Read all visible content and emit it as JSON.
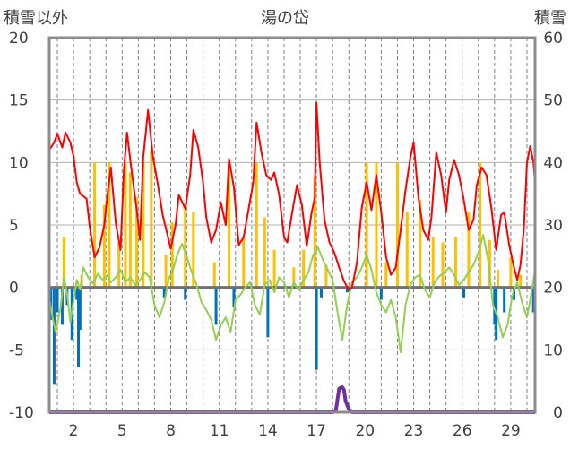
{
  "chart_data": {
    "type": "line",
    "title": "湯の岱",
    "left_axis_title": "積雪以外",
    "right_axis_title": "積雪",
    "ylim_left": [
      -10,
      20
    ],
    "ylim_right": [
      0,
      60
    ],
    "y_ticks_left": [
      "20",
      "15",
      "10",
      "5",
      "0",
      "-5",
      "-10"
    ],
    "y_ticks_right": [
      "60",
      "50",
      "40",
      "30",
      "20",
      "10",
      "0"
    ],
    "x_ticks": [
      "2",
      "5",
      "8",
      "11",
      "14",
      "17",
      "20",
      "23",
      "26",
      "29"
    ],
    "x_tick_days": [
      2,
      5,
      8,
      11,
      14,
      17,
      20,
      23,
      26,
      29
    ],
    "xlim": [
      0.5,
      30.5
    ],
    "grid": true,
    "colors": {
      "red_line": "#ff0000",
      "green_line": "#92d050",
      "orange_bars": "#ffc000",
      "blue_bars": "#0070c0",
      "purple_line": "#7030a0",
      "zero_line": "#707070",
      "frame": "#8c8c8c"
    },
    "series": [
      {
        "axis": "left",
        "style": "line",
        "color": "#ff0000",
        "points": [
          [
            0.5,
            11
          ],
          [
            0.8,
            11.6
          ],
          [
            1.0,
            12.3
          ],
          [
            1.3,
            11.2
          ],
          [
            1.5,
            12.4
          ],
          [
            1.8,
            11.6
          ],
          [
            2.0,
            10.5
          ],
          [
            2.2,
            8.4
          ],
          [
            2.4,
            7.5
          ],
          [
            2.8,
            7.1
          ],
          [
            3.0,
            4.8
          ],
          [
            3.3,
            2.4
          ],
          [
            3.6,
            3.2
          ],
          [
            3.9,
            5.0
          ],
          [
            4.1,
            7.5
          ],
          [
            4.3,
            9.6
          ],
          [
            4.6,
            5.2
          ],
          [
            4.9,
            3.0
          ],
          [
            5.1,
            9.2
          ],
          [
            5.3,
            12.4
          ],
          [
            5.6,
            9.2
          ],
          [
            5.9,
            6.2
          ],
          [
            6.1,
            3.8
          ],
          [
            6.3,
            10.4
          ],
          [
            6.6,
            14.2
          ],
          [
            6.9,
            10.5
          ],
          [
            7.2,
            8.3
          ],
          [
            7.5,
            5.8
          ],
          [
            7.8,
            4.2
          ],
          [
            8.0,
            3.1
          ],
          [
            8.3,
            5.0
          ],
          [
            8.5,
            7.4
          ],
          [
            8.9,
            6.3
          ],
          [
            9.2,
            9.0
          ],
          [
            9.4,
            12.6
          ],
          [
            9.7,
            11.2
          ],
          [
            10.0,
            8.4
          ],
          [
            10.2,
            5.6
          ],
          [
            10.5,
            3.6
          ],
          [
            10.8,
            4.6
          ],
          [
            11.1,
            6.8
          ],
          [
            11.4,
            5.0
          ],
          [
            11.6,
            10.3
          ],
          [
            11.9,
            8.0
          ],
          [
            12.2,
            3.4
          ],
          [
            12.5,
            4.0
          ],
          [
            12.8,
            6.2
          ],
          [
            13.1,
            8.4
          ],
          [
            13.3,
            13.2
          ],
          [
            13.6,
            10.8
          ],
          [
            13.9,
            9.0
          ],
          [
            14.2,
            8.6
          ],
          [
            14.4,
            9.2
          ],
          [
            14.7,
            7.4
          ],
          [
            15.0,
            4.0
          ],
          [
            15.2,
            3.6
          ],
          [
            15.5,
            6.0
          ],
          [
            15.8,
            8.2
          ],
          [
            16.1,
            6.6
          ],
          [
            16.4,
            3.3
          ],
          [
            16.7,
            6.0
          ],
          [
            16.9,
            7.2
          ],
          [
            17.0,
            14.8
          ],
          [
            17.2,
            10.0
          ],
          [
            17.5,
            5.4
          ],
          [
            17.8,
            3.6
          ],
          [
            18.1,
            2.8
          ],
          [
            18.4,
            1.6
          ],
          [
            18.7,
            0.5
          ],
          [
            19.0,
            -0.2
          ],
          [
            19.2,
            0.0
          ],
          [
            19.5,
            2.0
          ],
          [
            19.8,
            6.4
          ],
          [
            20.1,
            8.4
          ],
          [
            20.4,
            6.2
          ],
          [
            20.7,
            9.0
          ],
          [
            21.0,
            6.0
          ],
          [
            21.3,
            2.4
          ],
          [
            21.6,
            1.0
          ],
          [
            21.9,
            1.6
          ],
          [
            22.2,
            4.6
          ],
          [
            22.5,
            7.8
          ],
          [
            22.8,
            10.4
          ],
          [
            23.0,
            11.6
          ],
          [
            23.3,
            7.2
          ],
          [
            23.6,
            4.6
          ],
          [
            23.9,
            3.8
          ],
          [
            24.1,
            5.6
          ],
          [
            24.4,
            10.8
          ],
          [
            24.7,
            9.0
          ],
          [
            25.0,
            6.0
          ],
          [
            25.2,
            8.6
          ],
          [
            25.5,
            10.2
          ],
          [
            25.8,
            9.0
          ],
          [
            26.1,
            7.0
          ],
          [
            26.4,
            4.6
          ],
          [
            26.7,
            5.4
          ],
          [
            26.9,
            8.2
          ],
          [
            27.2,
            9.6
          ],
          [
            27.5,
            9.0
          ],
          [
            27.8,
            6.4
          ],
          [
            28.1,
            3.0
          ],
          [
            28.4,
            5.8
          ],
          [
            28.6,
            6.0
          ],
          [
            28.9,
            3.4
          ],
          [
            29.2,
            1.6
          ],
          [
            29.4,
            0.6
          ],
          [
            29.6,
            1.8
          ],
          [
            29.8,
            4.6
          ],
          [
            30.0,
            10.0
          ],
          [
            30.2,
            11.3
          ],
          [
            30.4,
            10.0
          ],
          [
            30.5,
            8.4
          ]
        ]
      },
      {
        "axis": "left",
        "style": "line",
        "color": "#92d050",
        "points": [
          [
            0.5,
            -0.8
          ],
          [
            0.7,
            -2.4
          ],
          [
            0.9,
            -3.6
          ],
          [
            1.2,
            -1.6
          ],
          [
            1.4,
            0.8
          ],
          [
            1.6,
            -0.5
          ],
          [
            1.8,
            -2.8
          ],
          [
            2.0,
            -1.0
          ],
          [
            2.2,
            0.6
          ],
          [
            2.4,
            -0.2
          ],
          [
            2.6,
            1.6
          ],
          [
            2.9,
            0.8
          ],
          [
            3.2,
            0.3
          ],
          [
            3.5,
            1.1
          ],
          [
            3.8,
            0.6
          ],
          [
            4.1,
            1.0
          ],
          [
            4.3,
            0.4
          ],
          [
            4.6,
            0.8
          ],
          [
            4.9,
            1.4
          ],
          [
            5.2,
            0.4
          ],
          [
            5.5,
            0.8
          ],
          [
            5.8,
            0.2
          ],
          [
            6.1,
            0.6
          ],
          [
            6.4,
            1.2
          ],
          [
            6.7,
            0.8
          ],
          [
            7.0,
            -1.4
          ],
          [
            7.3,
            -2.4
          ],
          [
            7.6,
            -1.2
          ],
          [
            7.9,
            0.8
          ],
          [
            8.1,
            1.2
          ],
          [
            8.4,
            2.6
          ],
          [
            8.7,
            3.5
          ],
          [
            9.0,
            2.4
          ],
          [
            9.3,
            1.2
          ],
          [
            9.6,
            0.2
          ],
          [
            9.9,
            -1.2
          ],
          [
            10.2,
            -1.8
          ],
          [
            10.5,
            -2.6
          ],
          [
            10.8,
            -4.2
          ],
          [
            11.1,
            -3.0
          ],
          [
            11.4,
            -2.4
          ],
          [
            11.7,
            -3.6
          ],
          [
            12.0,
            -1.0
          ],
          [
            12.3,
            -0.6
          ],
          [
            12.6,
            0.0
          ],
          [
            12.9,
            0.4
          ],
          [
            13.2,
            -1.4
          ],
          [
            13.5,
            -2.2
          ],
          [
            13.8,
            0.2
          ],
          [
            14.1,
            0.6
          ],
          [
            14.4,
            -0.4
          ],
          [
            14.7,
            0.8
          ],
          [
            15.0,
            0.4
          ],
          [
            15.3,
            -0.8
          ],
          [
            15.6,
            0.4
          ],
          [
            15.9,
            -0.2
          ],
          [
            16.2,
            0.6
          ],
          [
            16.5,
            1.2
          ],
          [
            16.8,
            2.6
          ],
          [
            17.1,
            3.2
          ],
          [
            17.4,
            2.2
          ],
          [
            17.7,
            1.4
          ],
          [
            18.0,
            0.6
          ],
          [
            18.3,
            -2.0
          ],
          [
            18.6,
            -4.2
          ],
          [
            18.9,
            -1.4
          ],
          [
            19.2,
            0.4
          ],
          [
            19.5,
            0.8
          ],
          [
            19.8,
            1.6
          ],
          [
            20.1,
            2.6
          ],
          [
            20.4,
            1.4
          ],
          [
            20.7,
            -0.4
          ],
          [
            21.0,
            -1.4
          ],
          [
            21.3,
            -2.0
          ],
          [
            21.6,
            -1.0
          ],
          [
            21.9,
            -2.4
          ],
          [
            22.2,
            -5.2
          ],
          [
            22.5,
            -1.4
          ],
          [
            22.8,
            0.2
          ],
          [
            23.1,
            0.8
          ],
          [
            23.4,
            1.0
          ],
          [
            23.7,
            -0.2
          ],
          [
            24.0,
            -0.8
          ],
          [
            24.3,
            0.4
          ],
          [
            24.6,
            0.9
          ],
          [
            24.9,
            1.2
          ],
          [
            25.2,
            1.6
          ],
          [
            25.5,
            1.0
          ],
          [
            25.8,
            0.2
          ],
          [
            26.1,
            0.6
          ],
          [
            26.4,
            1.2
          ],
          [
            26.7,
            1.8
          ],
          [
            27.0,
            2.8
          ],
          [
            27.3,
            4.2
          ],
          [
            27.6,
            2.2
          ],
          [
            27.9,
            -1.4
          ],
          [
            28.2,
            -2.4
          ],
          [
            28.5,
            -4.0
          ],
          [
            28.8,
            -3.0
          ],
          [
            29.1,
            -0.6
          ],
          [
            29.4,
            0.4
          ],
          [
            29.7,
            -1.2
          ],
          [
            30.0,
            -2.4
          ],
          [
            30.2,
            -1.0
          ],
          [
            30.5,
            1.4
          ]
        ]
      },
      {
        "axis": "left",
        "style": "bars",
        "color": "#ffc000",
        "points": [
          [
            1.4,
            4.0
          ],
          [
            2.5,
            1.0
          ],
          [
            3.3,
            10.0
          ],
          [
            3.9,
            6.6
          ],
          [
            4.2,
            10.0
          ],
          [
            4.8,
            3.6
          ],
          [
            5.2,
            10.0
          ],
          [
            5.5,
            9.2
          ],
          [
            5.9,
            7.2
          ],
          [
            6.3,
            10.0
          ],
          [
            6.8,
            11.0
          ],
          [
            7.7,
            2.6
          ],
          [
            8.1,
            5.2
          ],
          [
            8.9,
            6.4
          ],
          [
            9.4,
            6.0
          ],
          [
            10.7,
            2.0
          ],
          [
            11.6,
            10.0
          ],
          [
            12.5,
            4.0
          ],
          [
            13.3,
            10.0
          ],
          [
            13.8,
            5.6
          ],
          [
            14.4,
            3.0
          ],
          [
            15.6,
            1.6
          ],
          [
            16.2,
            3.0
          ],
          [
            16.9,
            8.8
          ],
          [
            17.6,
            1.8
          ],
          [
            20.1,
            10.0
          ],
          [
            20.7,
            10.0
          ],
          [
            21.3,
            2.0
          ],
          [
            22.0,
            10.0
          ],
          [
            22.6,
            6.0
          ],
          [
            23.4,
            7.0
          ],
          [
            24.2,
            4.0
          ],
          [
            24.8,
            3.6
          ],
          [
            25.6,
            4.0
          ],
          [
            26.4,
            6.0
          ],
          [
            27.1,
            10.0
          ],
          [
            27.7,
            3.8
          ],
          [
            28.2,
            1.4
          ],
          [
            29.0,
            2.4
          ],
          [
            29.6,
            1.0
          ]
        ]
      },
      {
        "axis": "left",
        "style": "bars",
        "color": "#0070c0",
        "points": [
          [
            0.6,
            -2.6
          ],
          [
            0.8,
            -7.8
          ],
          [
            1.0,
            -2.0
          ],
          [
            1.3,
            -3.0
          ],
          [
            1.6,
            -1.4
          ],
          [
            1.9,
            -4.2
          ],
          [
            2.2,
            -1.0
          ],
          [
            2.3,
            -6.4
          ],
          [
            2.4,
            -3.4
          ],
          [
            7.6,
            -0.8
          ],
          [
            8.9,
            -1.0
          ],
          [
            10.8,
            -3.0
          ],
          [
            11.9,
            -1.6
          ],
          [
            14.0,
            -4.0
          ],
          [
            17.0,
            -6.6
          ],
          [
            17.3,
            -0.8
          ],
          [
            18.9,
            -0.4
          ],
          [
            21.0,
            -1.0
          ],
          [
            26.1,
            -0.8
          ],
          [
            28.0,
            -3.0
          ],
          [
            28.1,
            -4.2
          ],
          [
            28.6,
            -2.0
          ],
          [
            29.2,
            -1.0
          ],
          [
            30.4,
            -2.0
          ]
        ]
      },
      {
        "axis": "right",
        "style": "line",
        "color": "#7030a0",
        "points": [
          [
            0.5,
            0
          ],
          [
            18.0,
            0
          ],
          [
            18.2,
            0.3
          ],
          [
            18.4,
            3.8
          ],
          [
            18.6,
            4.0
          ],
          [
            18.7,
            3.6
          ],
          [
            18.8,
            1.8
          ],
          [
            19.0,
            0.5
          ],
          [
            19.2,
            0
          ],
          [
            30.5,
            0
          ]
        ]
      }
    ]
  }
}
